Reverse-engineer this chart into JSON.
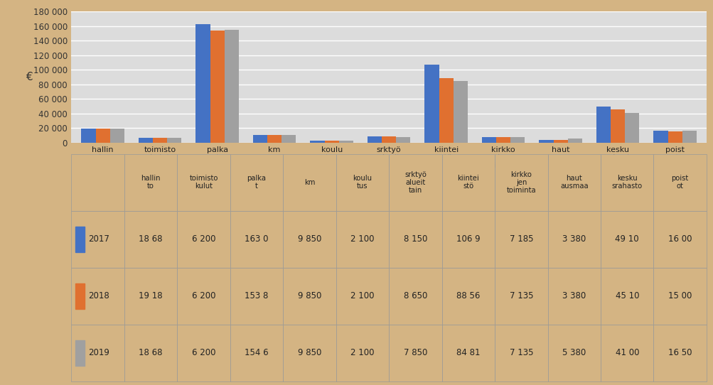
{
  "categories": [
    "hallin\nto",
    "toimisto\nkulut",
    "palka\nt",
    "km",
    "koulu\ntus",
    "srktyö\nalueit\ntain",
    "kiintei\nstö",
    "kirkko\njen\ntoiminta",
    "haut\nausmaa",
    "kesku\nsrahasto",
    "poist\not"
  ],
  "series": [
    {
      "label": "2017",
      "color": "#4472C4",
      "values": [
        18680,
        6200,
        163000,
        9850,
        2100,
        8150,
        106900,
        7185,
        3380,
        49100,
        16000
      ]
    },
    {
      "label": "2018",
      "color": "#E07030",
      "values": [
        19180,
        6200,
        153800,
        9850,
        2100,
        8650,
        88560,
        7135,
        3380,
        45100,
        15000
      ]
    },
    {
      "label": "2019",
      "color": "#A0A0A0",
      "values": [
        18680,
        6200,
        154600,
        9850,
        2100,
        7850,
        84810,
        7135,
        5380,
        41000,
        16500
      ]
    }
  ],
  "table_values": [
    [
      "18 68",
      "6 200",
      "163 0",
      "9 850",
      "2 100",
      "8 150",
      "106 9",
      "7 185",
      "3 380",
      "49 10",
      "16 00"
    ],
    [
      "19 18",
      "6 200",
      "153 8",
      "9 850",
      "2 100",
      "8 650",
      "88 56",
      "7 135",
      "3 380",
      "45 10",
      "15 00"
    ],
    [
      "18 68",
      "6 200",
      "154 6",
      "9 850",
      "2 100",
      "7 850",
      "84 81",
      "7 135",
      "5 380",
      "41 00",
      "16 50"
    ]
  ],
  "year_labels": [
    "2017",
    "2018",
    "2019"
  ],
  "ylabel": "€",
  "ylim": [
    0,
    180000
  ],
  "yticks": [
    0,
    20000,
    40000,
    60000,
    80000,
    100000,
    120000,
    140000,
    160000,
    180000
  ],
  "ytick_labels": [
    "0",
    "20 000",
    "40 000",
    "60 000",
    "80 000",
    "100 000",
    "120 000",
    "140 000",
    "160 000",
    "180 000"
  ],
  "background_color": "#D4B483",
  "plot_bg_color": "#DCDCDC",
  "grid_color": "#FFFFFF",
  "bar_width": 0.25
}
